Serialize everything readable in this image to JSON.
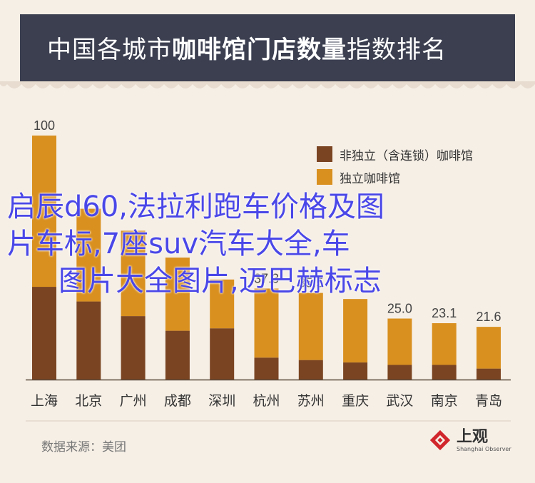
{
  "header": {
    "title_light": "中国各城市",
    "title_bold": "咖啡馆门店数量",
    "title_rest": "指数排名"
  },
  "overlay_text": {
    "line1": "启辰d60,法拉利跑车价格及图",
    "line2": "片车标,7座suv汽车大全,车",
    "line3": "图片大全图片,迈巴赫标志"
  },
  "source": "数据来源：美团",
  "logo": {
    "name": "上观",
    "sub": "Shanghai Observer"
  },
  "colors": {
    "non_independent": "#7a4422",
    "independent": "#d9901f",
    "header_bg": "#3b3f50",
    "background": "#f6efe6"
  },
  "chart_data": {
    "type": "bar",
    "stacked": true,
    "categories": [
      "上海",
      "北京",
      "广州",
      "成都",
      "深圳",
      "杭州",
      "苏州",
      "重庆",
      "武汉",
      "南京",
      "青岛"
    ],
    "totals": [
      "100",
      "",
      "",
      "",
      "",
      "37.3",
      "35.5",
      "",
      "25.0",
      "23.1",
      "21.6"
    ],
    "series": [
      {
        "name": "非独立（含连锁）咖啡馆",
        "values": [
          38,
          32,
          26,
          20,
          21,
          9,
          8,
          7,
          6,
          6,
          4.5
        ]
      },
      {
        "name": "独立咖啡馆",
        "values": [
          62,
          38,
          35,
          30,
          20,
          28.3,
          27.5,
          26,
          19,
          17.1,
          17.1
        ]
      }
    ],
    "ylim": [
      0,
      100
    ],
    "legend_position": "top-right"
  }
}
